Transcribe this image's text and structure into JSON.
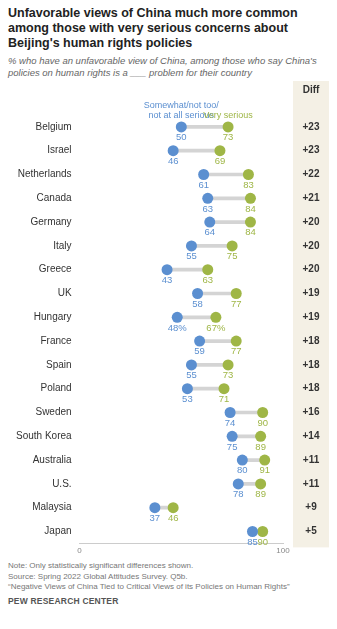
{
  "chart_data": {
    "type": "dumbbell",
    "title": "Unfavorable views of China much more common among those with very serious concerns about Beijing's human rights policies",
    "subtitle": "% who have an unfavorable view of China, among those who say China's policies on human rights is a ___ problem for their country",
    "orientation": "horizontal",
    "grid": false,
    "data_labels": true,
    "categories": [
      "Belgium",
      "Israel",
      "Netherlands",
      "Canada",
      "Germany",
      "Italy",
      "Greece",
      "UK",
      "Hungary",
      "France",
      "Spain",
      "Poland",
      "Sweden",
      "South Korea",
      "Australia",
      "U.S.",
      "Malaysia",
      "Japan"
    ],
    "series": [
      {
        "name": "Somewhat/not too/ not at all serious",
        "color": "#5b8fd0",
        "values": [
          50,
          46,
          61,
          63,
          64,
          55,
          43,
          58,
          48,
          59,
          55,
          53,
          74,
          75,
          80,
          78,
          37,
          85
        ],
        "value_labels": [
          "50",
          "46",
          "61",
          "63",
          "64",
          "55",
          "43",
          "58",
          "48%",
          "59",
          "55",
          "53",
          "74",
          "75",
          "80",
          "78",
          "37",
          "85"
        ]
      },
      {
        "name": "Very serious",
        "color": "#9fb646",
        "values": [
          73,
          69,
          83,
          84,
          84,
          75,
          63,
          77,
          67,
          77,
          73,
          71,
          90,
          89,
          91,
          89,
          46,
          90
        ],
        "value_labels": [
          "73",
          "69",
          "83",
          "84",
          "84",
          "75",
          "63",
          "77",
          "67%",
          "77",
          "73",
          "71",
          "90",
          "89",
          "91",
          "89",
          "46",
          "90"
        ]
      }
    ],
    "diff": {
      "title": "Diff",
      "values": [
        23,
        23,
        22,
        21,
        20,
        20,
        20,
        19,
        19,
        18,
        18,
        18,
        16,
        14,
        11,
        11,
        9,
        5
      ],
      "value_labels": [
        "+23",
        "+23",
        "+22",
        "+21",
        "+20",
        "+20",
        "+20",
        "+19",
        "+19",
        "+18",
        "+18",
        "+18",
        "+16",
        "+14",
        "+11",
        "+11",
        "+9",
        "+5"
      ]
    },
    "xlim": [
      0,
      100
    ],
    "xticks": [
      0,
      100
    ],
    "note": "Note: Only statistically significant differences shown.",
    "source": "Source: Spring 2022 Global Attitudes Survey. Q5b.",
    "report_title": "“Negative Views of China Tied to Critical Views of its Policies on Human Rights”",
    "credit": "PEW RESEARCH CENTER"
  }
}
